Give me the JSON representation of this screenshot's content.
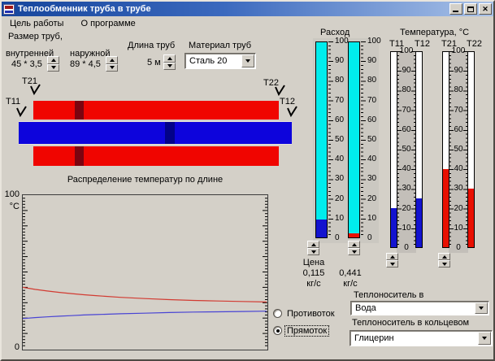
{
  "window": {
    "title": "Теплообменник труба в трубе",
    "controls": {
      "minimize": "minimize",
      "maximize": "maximize",
      "close": "✕"
    }
  },
  "menu": {
    "items": [
      {
        "label": "Цель работы"
      },
      {
        "label": "О программе"
      }
    ]
  },
  "pipe_params": {
    "size_title": "Размер труб,",
    "inner": {
      "label": "внутренней",
      "value": "45 * 3,5"
    },
    "outer": {
      "label": "наружной",
      "value": "89 * 4,5"
    },
    "length": {
      "label": "Длина труб",
      "value": "5 м"
    },
    "material": {
      "label": "Материал труб",
      "value": "Сталь 20"
    }
  },
  "diagram": {
    "sensors": [
      {
        "id": "T21"
      },
      {
        "id": "T22"
      },
      {
        "id": "T11"
      },
      {
        "id": "T12"
      }
    ],
    "colors": {
      "annulus": "#f00500",
      "annulus_dark": "#7b0410",
      "inner": "#0d04dc",
      "inner_dark": "#020289"
    }
  },
  "flow": {
    "title": "Расход",
    "scale": {
      "min": 0,
      "max": 100,
      "step": 10
    },
    "gauges": [
      {
        "id": "inner-pipe-flow",
        "value": 9,
        "fill_color": "#1313cf",
        "tube_color": "#00eded"
      },
      {
        "id": "annulus-flow",
        "value": 2,
        "fill_color": "#e80f00",
        "tube_color": "#00eded"
      }
    ],
    "price_title": "Цена",
    "prices": [
      {
        "value": "0,115",
        "unit": "кг/с"
      },
      {
        "value": "0,441",
        "unit": "кг/с"
      }
    ]
  },
  "temperature": {
    "title": "Температура, °С",
    "scale": {
      "min": 0,
      "max": 100,
      "step": 10
    },
    "pairs": [
      {
        "left": {
          "id": "T11",
          "value": 20
        },
        "right": {
          "id": "T12",
          "value": 25
        },
        "fill_color": "#1313cf"
      },
      {
        "left": {
          "id": "T21",
          "value": 40
        },
        "right": {
          "id": "T22",
          "value": 30
        },
        "fill_color": "#e80f00"
      }
    ]
  },
  "mode": {
    "options": [
      {
        "label": "Противоток",
        "selected": false
      },
      {
        "label": "Прямоток",
        "selected": true
      }
    ]
  },
  "carriers": {
    "pipe": {
      "label": "Теплоноситель в",
      "value": "Вода"
    },
    "annulus": {
      "label": "Теплоноситель в кольцевом",
      "value": "Глицерин"
    }
  },
  "chart_data": {
    "type": "line",
    "title": "Распределение температур по длине",
    "ylabel": "°С",
    "y_top_label": "100",
    "y_bottom_label": "0",
    "ylim": [
      0,
      100
    ],
    "x_range": [
      0,
      1
    ],
    "grid": false,
    "legend": "none",
    "series": [
      {
        "name": "hot-annulus-red",
        "color": "#d23b32",
        "points": [
          [
            0,
            40
          ],
          [
            0.05,
            38.7
          ],
          [
            0.1,
            37.6
          ],
          [
            0.15,
            36.7
          ],
          [
            0.2,
            35.9
          ],
          [
            0.25,
            35.2
          ],
          [
            0.3,
            34.6
          ],
          [
            0.4,
            33.5
          ],
          [
            0.5,
            32.7
          ],
          [
            0.6,
            32.0
          ],
          [
            0.7,
            31.5
          ],
          [
            0.8,
            31.1
          ],
          [
            0.9,
            30.8
          ],
          [
            1,
            30.5
          ]
        ]
      },
      {
        "name": "cold-inner-blue",
        "color": "#4944d4",
        "points": [
          [
            0,
            19.7
          ],
          [
            0.05,
            20.3
          ],
          [
            0.1,
            20.8
          ],
          [
            0.15,
            21.2
          ],
          [
            0.2,
            21.6
          ],
          [
            0.25,
            22.0
          ],
          [
            0.3,
            22.3
          ],
          [
            0.4,
            22.8
          ],
          [
            0.5,
            23.2
          ],
          [
            0.6,
            23.6
          ],
          [
            0.7,
            23.9
          ],
          [
            0.8,
            24.1
          ],
          [
            0.9,
            24.3
          ],
          [
            1,
            24.5
          ]
        ]
      }
    ]
  }
}
